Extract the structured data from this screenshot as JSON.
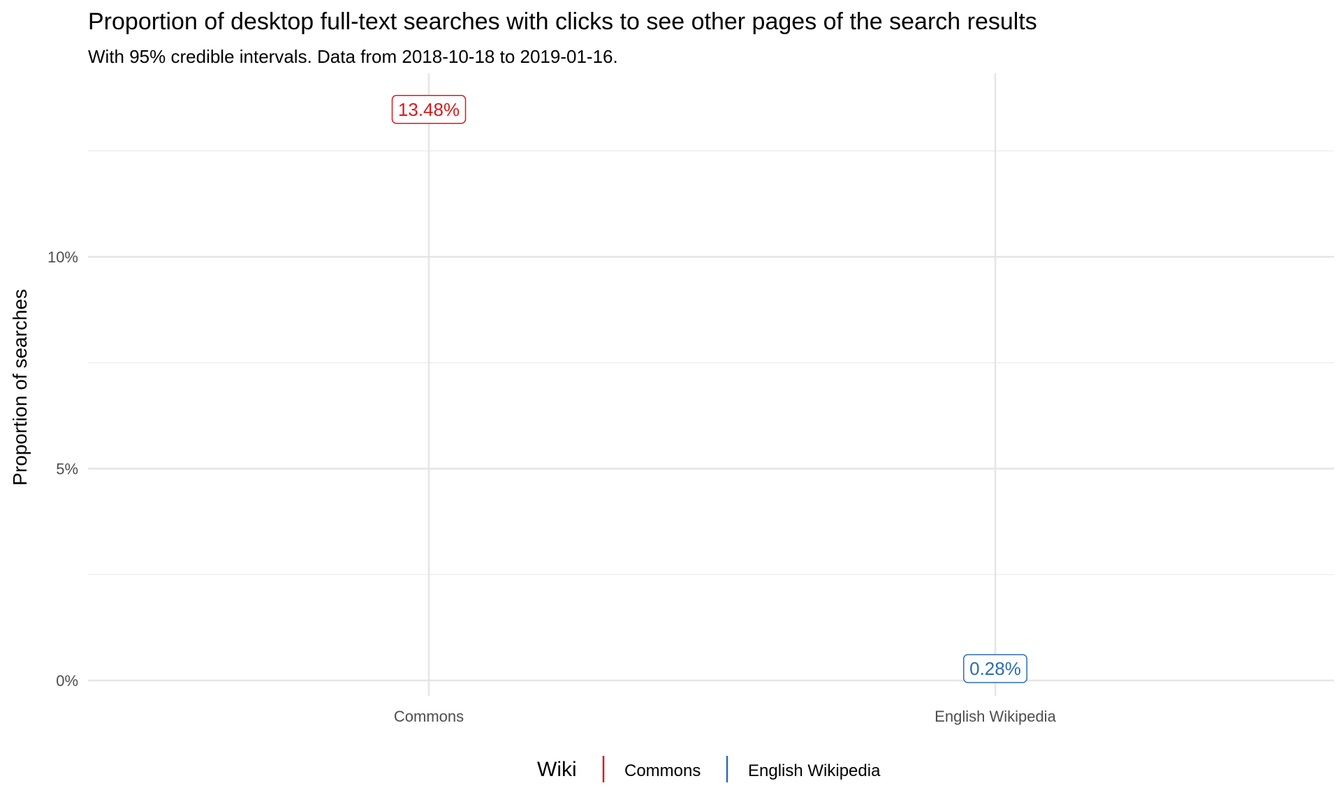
{
  "chart_data": {
    "type": "scatter",
    "title": "Proportion of desktop full-text searches with clicks to see other pages of the search results",
    "subtitle": "With 95% credible intervals. Data from 2018-10-18 to 2019-01-16.",
    "xlabel": "",
    "ylabel": "Proportion of searches",
    "categories": [
      "Commons",
      "English Wikipedia"
    ],
    "ylim": [
      0,
      14
    ],
    "yticks": [
      0,
      5,
      10
    ],
    "ytick_labels": [
      "0%",
      "5%",
      "10%"
    ],
    "grid": true,
    "legend": {
      "title": "Wiki",
      "position": "bottom",
      "entries": [
        "Commons",
        "English Wikipedia"
      ]
    },
    "series": [
      {
        "name": "Commons",
        "category": "Commons",
        "value": 13.48,
        "label": "13.48%",
        "color": "#d7191c"
      },
      {
        "name": "English Wikipedia",
        "category": "English Wikipedia",
        "value": 0.28,
        "label": "0.28%",
        "color": "#2c6cb0"
      }
    ]
  }
}
